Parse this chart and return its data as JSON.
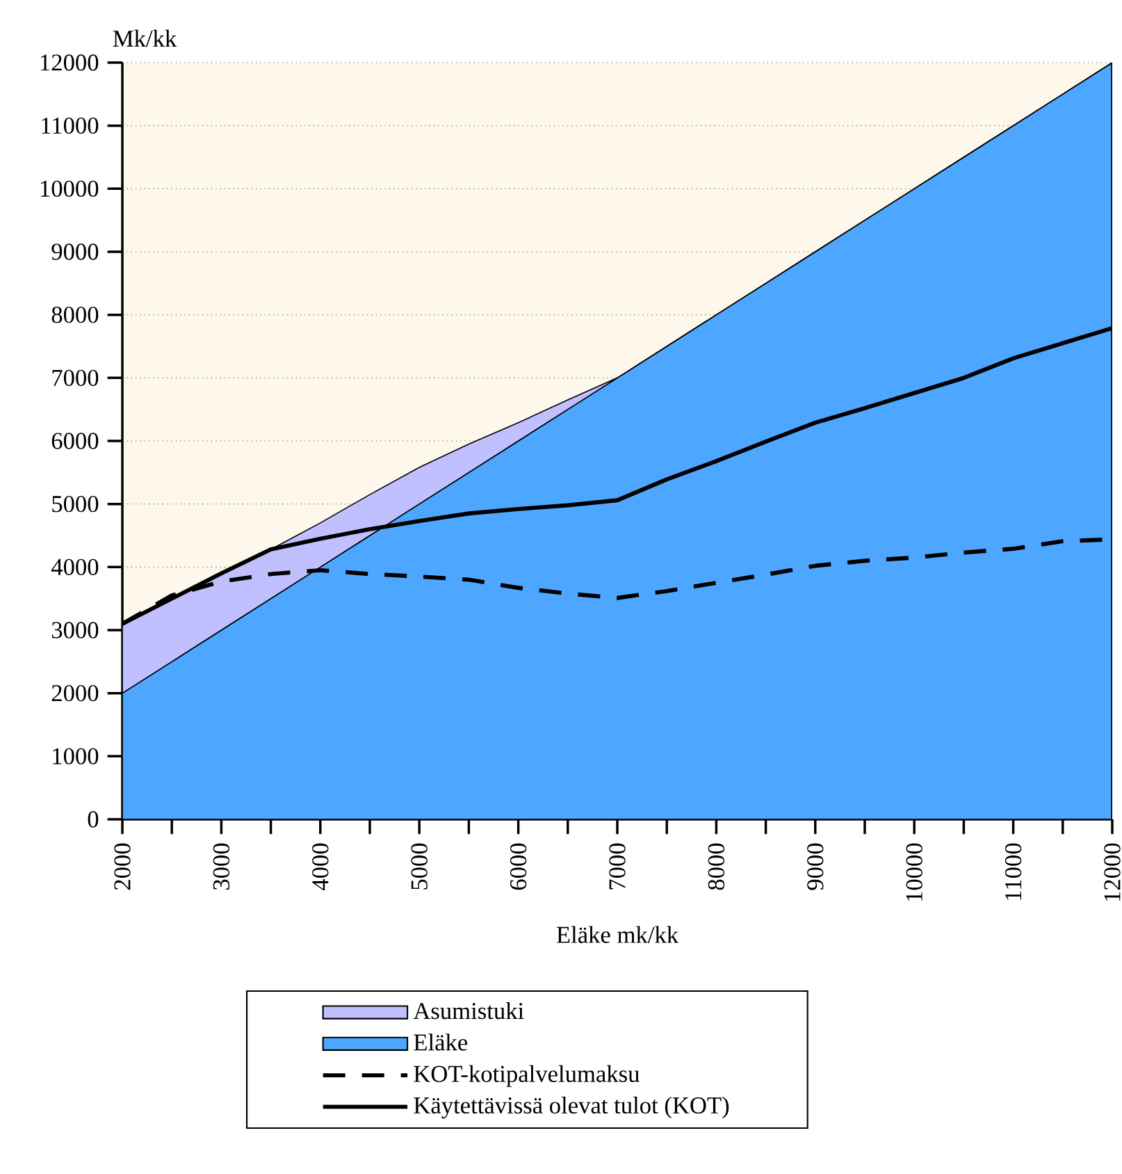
{
  "chart_data": {
    "type": "area",
    "stacked": true,
    "xlabel": "Eläke mk/kk",
    "ylabel": "Mk/kk",
    "x": [
      2000,
      2500,
      3000,
      3500,
      4000,
      4500,
      5000,
      5500,
      6000,
      6500,
      7000,
      7500,
      8000,
      8500,
      9000,
      9500,
      10000,
      10500,
      11000,
      11500,
      12000
    ],
    "series": [
      {
        "name": "Eläke",
        "color": "#4da6ff",
        "values": [
          2000,
          2500,
          3000,
          3500,
          4000,
          4500,
          5000,
          5500,
          6000,
          6500,
          7000,
          7500,
          8000,
          8500,
          9000,
          9500,
          10000,
          10500,
          11000,
          11500,
          12000
        ]
      },
      {
        "name": "Asumistuki",
        "color": "#c0c0ff",
        "values": [
          1100,
          1000,
          900,
          780,
          700,
          650,
          580,
          450,
          290,
          150,
          0,
          0,
          0,
          0,
          0,
          0,
          0,
          0,
          0,
          0,
          0
        ]
      },
      {
        "name": "KOT-kotipalvelumaksu",
        "type": "line",
        "line_style": "dashed",
        "color": "#000000",
        "values": [
          3100,
          3550,
          3770,
          3890,
          3950,
          3890,
          3850,
          3800,
          3670,
          3580,
          3510,
          3620,
          3750,
          3880,
          4020,
          4100,
          4150,
          4230,
          4290,
          4410,
          4440
        ]
      },
      {
        "name": "Käytettävissä olevat tulot (KOT)",
        "type": "line",
        "line_style": "solid",
        "color": "#000000",
        "values": [
          3100,
          3500,
          3900,
          4280,
          4450,
          4600,
          4730,
          4850,
          4920,
          4980,
          5060,
          5390,
          5680,
          5990,
          6290,
          6520,
          6760,
          7000,
          7310,
          7550,
          7790
        ]
      }
    ],
    "xlim": [
      2000,
      12000
    ],
    "ylim": [
      0,
      12000
    ],
    "xticks": [
      2000,
      {
        "value": 2500,
        "label": null
      },
      3000,
      {
        "value": 3500,
        "label": null
      },
      4000,
      {
        "value": 4500,
        "label": null
      },
      5000,
      {
        "value": 5500,
        "label": null
      },
      6000,
      {
        "value": 6500,
        "label": null
      },
      7000,
      {
        "value": 7500,
        "label": null
      },
      8000,
      {
        "value": 8500,
        "label": null
      },
      9000,
      {
        "value": 9500,
        "label": null
      },
      10000,
      {
        "value": 10500,
        "label": null
      },
      11000,
      {
        "value": 11500,
        "label": null
      },
      12000
    ],
    "yticks": [
      0,
      1000,
      2000,
      3000,
      4000,
      5000,
      6000,
      7000,
      8000,
      9000,
      10000,
      11000,
      12000
    ],
    "grid": "y",
    "legend": "bottom"
  }
}
